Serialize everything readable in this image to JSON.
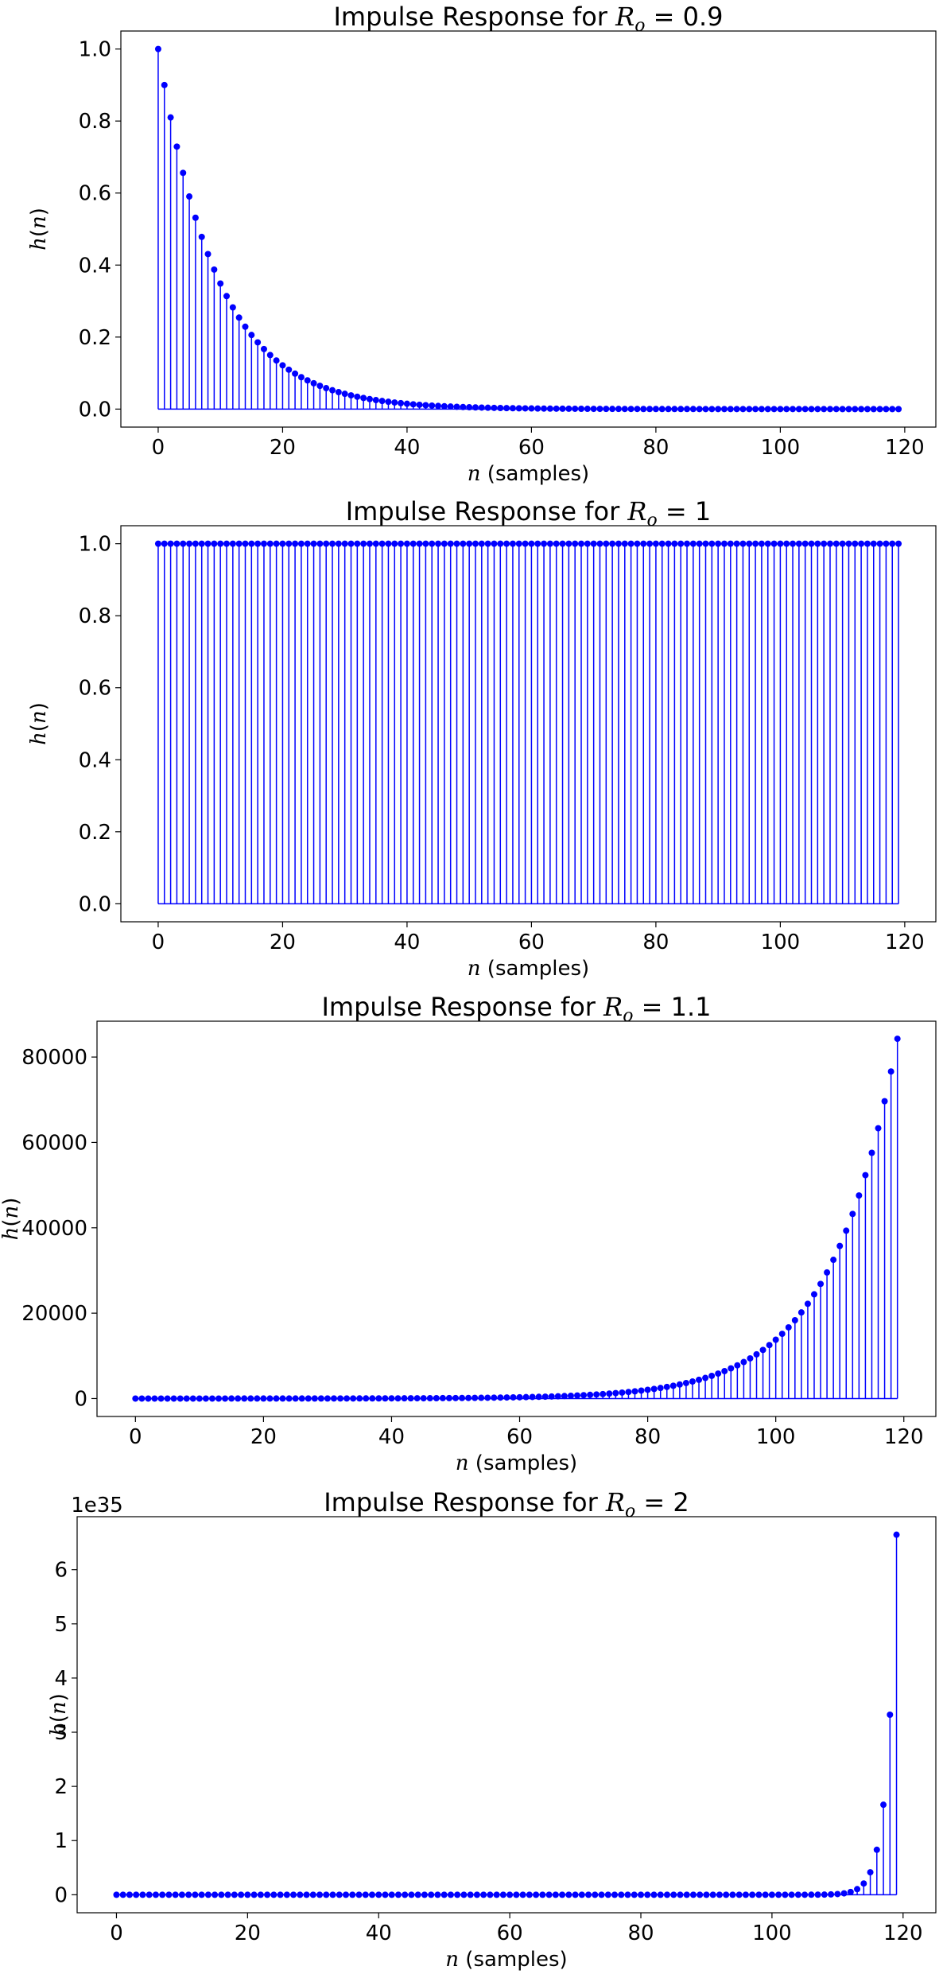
{
  "colors": {
    "stem": "#0000ff",
    "marker": "#0000ff",
    "axes": "#000000",
    "background": "#ffffff"
  },
  "chart_data": [
    {
      "type": "stem",
      "title_text": "Impulse Response for ",
      "title_math_var": "R",
      "title_math_sub": "o",
      "title_value": "= 0.9",
      "xlabel_var": "n",
      "xlabel_text": " (samples)",
      "ylabel_var": "h",
      "ylabel_arg": "n",
      "base": 0.9,
      "n_start": 0,
      "n_end": 119,
      "formula": "h(n) = 0.9^n",
      "xlim": [
        -6,
        125
      ],
      "ylim": [
        -0.05,
        1.05
      ],
      "xticks": [
        0,
        20,
        40,
        60,
        80,
        100,
        120
      ],
      "yticks": [
        0.0,
        0.2,
        0.4,
        0.6,
        0.8,
        1.0
      ],
      "ytick_labels": [
        "0.0",
        "0.2",
        "0.4",
        "0.6",
        "0.8",
        "1.0"
      ],
      "offset_text": ""
    },
    {
      "type": "stem",
      "title_text": "Impulse Response for ",
      "title_math_var": "R",
      "title_math_sub": "o",
      "title_value": "= 1",
      "xlabel_var": "n",
      "xlabel_text": " (samples)",
      "ylabel_var": "h",
      "ylabel_arg": "n",
      "base": 1,
      "n_start": 0,
      "n_end": 119,
      "formula": "h(n) = 1^n",
      "xlim": [
        -6,
        125
      ],
      "ylim": [
        -0.05,
        1.05
      ],
      "xticks": [
        0,
        20,
        40,
        60,
        80,
        100,
        120
      ],
      "yticks": [
        0.0,
        0.2,
        0.4,
        0.6,
        0.8,
        1.0
      ],
      "ytick_labels": [
        "0.0",
        "0.2",
        "0.4",
        "0.6",
        "0.8",
        "1.0"
      ],
      "offset_text": ""
    },
    {
      "type": "stem",
      "title_text": "Impulse Response for ",
      "title_math_var": "R",
      "title_math_sub": "o",
      "title_value": "= 1.1",
      "xlabel_var": "n",
      "xlabel_text": " (samples)",
      "ylabel_var": "h",
      "ylabel_arg": "n",
      "base": 1.1,
      "n_start": 0,
      "n_end": 119,
      "formula": "h(n) = 1.1^n",
      "xlim": [
        -6,
        125
      ],
      "ylim": [
        -4200,
        88400
      ],
      "xticks": [
        0,
        20,
        40,
        60,
        80,
        100,
        120
      ],
      "yticks": [
        0,
        20000,
        40000,
        60000,
        80000
      ],
      "ytick_labels": [
        "0",
        "20000",
        "40000",
        "60000",
        "80000"
      ],
      "offset_text": ""
    },
    {
      "type": "stem",
      "title_text": "Impulse Response for ",
      "title_math_var": "R",
      "title_math_sub": "o",
      "title_value": "= 2",
      "xlabel_var": "n",
      "xlabel_text": " (samples)",
      "ylabel_var": "h",
      "ylabel_arg": "n",
      "base": 2,
      "n_start": 0,
      "n_end": 119,
      "formula": "h(n) = 2^n",
      "scale": 1e+35,
      "xlim": [
        -6,
        125
      ],
      "ylim": [
        -0.3323,
        6.9786
      ],
      "xticks": [
        0,
        20,
        40,
        60,
        80,
        100,
        120
      ],
      "yticks": [
        0,
        1,
        2,
        3,
        4,
        5,
        6
      ],
      "ytick_labels": [
        "0",
        "1",
        "2",
        "3",
        "4",
        "5",
        "6"
      ],
      "offset_text": "1e35"
    }
  ]
}
